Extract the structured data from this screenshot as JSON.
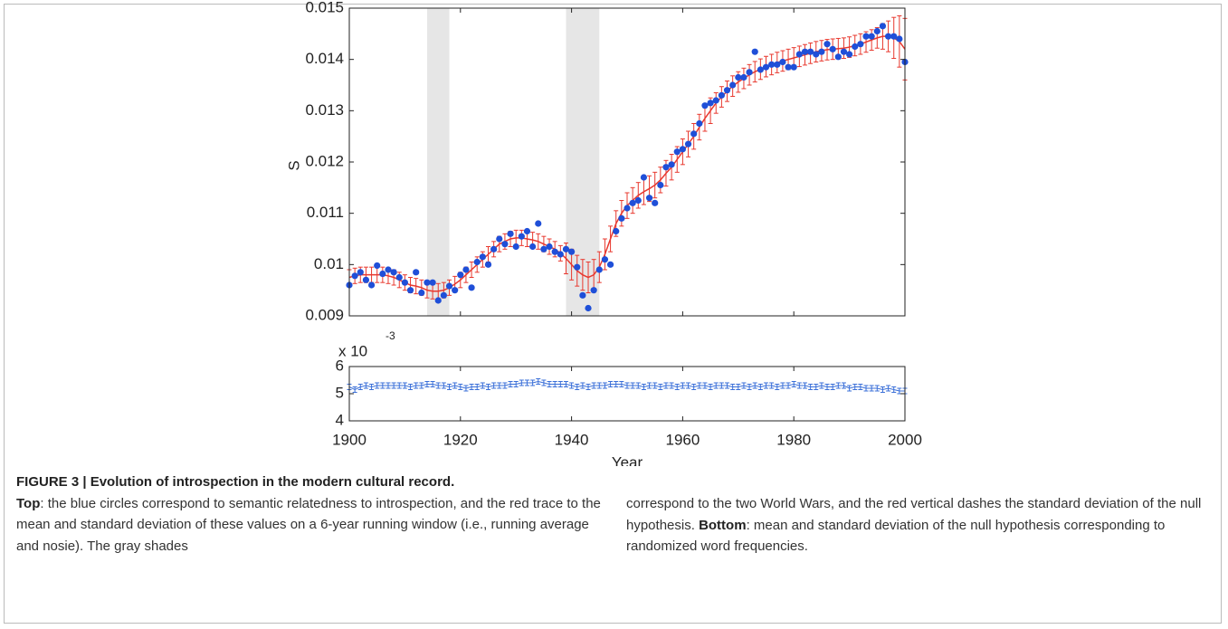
{
  "chart_data": [
    {
      "type": "scatter",
      "ylabel": "S",
      "x": [
        1900,
        1901,
        1902,
        1903,
        1904,
        1905,
        1906,
        1907,
        1908,
        1909,
        1910,
        1911,
        1912,
        1913,
        1914,
        1915,
        1916,
        1917,
        1918,
        1919,
        1920,
        1921,
        1922,
        1923,
        1924,
        1925,
        1926,
        1927,
        1928,
        1929,
        1930,
        1931,
        1932,
        1933,
        1934,
        1935,
        1936,
        1937,
        1938,
        1939,
        1940,
        1941,
        1942,
        1943,
        1944,
        1945,
        1946,
        1947,
        1948,
        1949,
        1950,
        1951,
        1952,
        1953,
        1954,
        1955,
        1956,
        1957,
        1958,
        1959,
        1960,
        1961,
        1962,
        1963,
        1964,
        1965,
        1966,
        1967,
        1968,
        1969,
        1970,
        1971,
        1972,
        1973,
        1974,
        1975,
        1976,
        1977,
        1978,
        1979,
        1980,
        1981,
        1982,
        1983,
        1984,
        1985,
        1986,
        1987,
        1988,
        1989,
        1990,
        1991,
        1992,
        1993,
        1994,
        1995,
        1996,
        1997,
        1998,
        1999,
        2000
      ],
      "series": [
        {
          "color": "#1f4fd8",
          "values": [
            0.0096,
            0.00978,
            0.00985,
            0.0097,
            0.0096,
            0.00998,
            0.00982,
            0.0099,
            0.00985,
            0.00975,
            0.00965,
            0.0095,
            0.00985,
            0.00945,
            0.00965,
            0.00965,
            0.0093,
            0.0094,
            0.00958,
            0.0095,
            0.0098,
            0.0099,
            0.00955,
            0.01005,
            0.01015,
            0.01,
            0.0103,
            0.0105,
            0.0104,
            0.0106,
            0.01035,
            0.01055,
            0.01065,
            0.01035,
            0.0108,
            0.0103,
            0.01035,
            0.01025,
            0.0102,
            0.0103,
            0.01025,
            0.00995,
            0.0094,
            0.00915,
            0.0095,
            0.0099,
            0.0101,
            0.01,
            0.01065,
            0.0109,
            0.0111,
            0.0112,
            0.01125,
            0.0117,
            0.0113,
            0.0112,
            0.01155,
            0.0119,
            0.01195,
            0.0122,
            0.01225,
            0.01235,
            0.01255,
            0.01275,
            0.0131,
            0.01315,
            0.0132,
            0.0133,
            0.0134,
            0.0135,
            0.01365,
            0.01365,
            0.01375,
            0.01415,
            0.0138,
            0.01385,
            0.0139,
            0.0139,
            0.01395,
            0.01385,
            0.01385,
            0.0141,
            0.01415,
            0.01415,
            0.0141,
            0.01415,
            0.0143,
            0.0142,
            0.01405,
            0.01415,
            0.0141,
            0.01425,
            0.0143,
            0.01445,
            0.01445,
            0.01455,
            0.01465,
            0.01445,
            0.01445,
            0.0144,
            0.01395
          ]
        },
        {
          "color": "#e8382e",
          "values": [
            0.00975,
            0.00978,
            0.0098,
            0.0098,
            0.0098,
            0.0098,
            0.0098,
            0.00978,
            0.00975,
            0.0097,
            0.00965,
            0.0096,
            0.00958,
            0.00955,
            0.0095,
            0.00948,
            0.00948,
            0.0095,
            0.00955,
            0.00962,
            0.0097,
            0.0098,
            0.0099,
            0.01,
            0.0101,
            0.0102,
            0.0103,
            0.0104,
            0.01045,
            0.0105,
            0.01052,
            0.01052,
            0.0105,
            0.01048,
            0.01045,
            0.0104,
            0.01035,
            0.0103,
            0.01022,
            0.01012,
            0.01,
            0.00988,
            0.0098,
            0.00975,
            0.0098,
            0.00995,
            0.0102,
            0.0105,
            0.0108,
            0.011,
            0.01115,
            0.01125,
            0.01135,
            0.01142,
            0.01148,
            0.01155,
            0.01165,
            0.01178,
            0.0119,
            0.01205,
            0.0122,
            0.01235,
            0.0125,
            0.01268,
            0.01285,
            0.013,
            0.01315,
            0.01327,
            0.01338,
            0.01348,
            0.01356,
            0.01363,
            0.0137,
            0.01376,
            0.01381,
            0.01386,
            0.0139,
            0.01394,
            0.01397,
            0.014,
            0.01403,
            0.01406,
            0.01409,
            0.01412,
            0.01415,
            0.01417,
            0.01419,
            0.0142,
            0.01421,
            0.01422,
            0.01424,
            0.01427,
            0.0143,
            0.01434,
            0.01438,
            0.01442,
            0.01445,
            0.01445,
            0.01442,
            0.01435,
            0.0142
          ],
          "errors": [
            0.00015,
            0.00015,
            0.00015,
            0.00015,
            0.00015,
            0.00015,
            0.00015,
            0.00015,
            0.00015,
            0.00015,
            0.00015,
            0.00015,
            0.00015,
            0.00015,
            0.00015,
            0.00015,
            0.00015,
            0.00015,
            0.00015,
            0.00015,
            0.00015,
            0.00015,
            0.00015,
            0.00015,
            0.00015,
            0.00015,
            0.00015,
            0.00015,
            0.00015,
            0.00015,
            0.00015,
            0.00015,
            0.00015,
            0.00015,
            0.00015,
            0.00015,
            0.00015,
            0.00015,
            0.00015,
            0.0003,
            0.0003,
            0.0003,
            0.0003,
            0.0003,
            0.0003,
            0.0003,
            0.0003,
            0.00025,
            0.00025,
            0.00025,
            0.00025,
            0.00025,
            0.00025,
            0.00025,
            0.00025,
            0.00025,
            0.00025,
            0.00025,
            0.00025,
            0.00025,
            0.00025,
            0.00025,
            0.00025,
            0.00025,
            0.00025,
            0.00025,
            0.0002,
            0.0002,
            0.0002,
            0.0002,
            0.0002,
            0.0002,
            0.0002,
            0.0002,
            0.0002,
            0.0002,
            0.0002,
            0.0002,
            0.0002,
            0.0002,
            0.0002,
            0.0002,
            0.0002,
            0.0002,
            0.0002,
            0.0002,
            0.0002,
            0.0002,
            0.0002,
            0.0002,
            0.0002,
            0.0002,
            0.0002,
            0.0002,
            0.0002,
            0.0002,
            0.00025,
            0.0003,
            0.0004,
            0.0005,
            0.0006
          ]
        }
      ],
      "shades": [
        [
          1914,
          1918
        ],
        [
          1939,
          1945
        ]
      ],
      "shade_color": "#e6e6e6",
      "xlim": [
        1900,
        2000
      ],
      "xticks": [
        1900,
        1920,
        1940,
        1960,
        1980,
        2000
      ],
      "ylim": [
        0.009,
        0.015
      ],
      "yticks": [
        0.009,
        0.01,
        0.011,
        0.012,
        0.013,
        0.014,
        0.015
      ]
    },
    {
      "type": "errorbar",
      "xlabel": "Year",
      "axis_multiplier": "x 10",
      "axis_multiplier_exp": "-3",
      "x": [
        1900,
        1901,
        1902,
        1903,
        1904,
        1905,
        1906,
        1907,
        1908,
        1909,
        1910,
        1911,
        1912,
        1913,
        1914,
        1915,
        1916,
        1917,
        1918,
        1919,
        1920,
        1921,
        1922,
        1923,
        1924,
        1925,
        1926,
        1927,
        1928,
        1929,
        1930,
        1931,
        1932,
        1933,
        1934,
        1935,
        1936,
        1937,
        1938,
        1939,
        1940,
        1941,
        1942,
        1943,
        1944,
        1945,
        1946,
        1947,
        1948,
        1949,
        1950,
        1951,
        1952,
        1953,
        1954,
        1955,
        1956,
        1957,
        1958,
        1959,
        1960,
        1961,
        1962,
        1963,
        1964,
        1965,
        1966,
        1967,
        1968,
        1969,
        1970,
        1971,
        1972,
        1973,
        1974,
        1975,
        1976,
        1977,
        1978,
        1979,
        1980,
        1981,
        1982,
        1983,
        1984,
        1985,
        1986,
        1987,
        1988,
        1989,
        1990,
        1991,
        1992,
        1993,
        1994,
        1995,
        1996,
        1997,
        1998,
        1999,
        2000
      ],
      "color": "#3a6fd8",
      "values": [
        5.25,
        5.15,
        5.25,
        5.3,
        5.25,
        5.3,
        5.3,
        5.3,
        5.3,
        5.3,
        5.3,
        5.25,
        5.3,
        5.3,
        5.35,
        5.35,
        5.3,
        5.3,
        5.25,
        5.3,
        5.25,
        5.2,
        5.25,
        5.25,
        5.3,
        5.25,
        5.3,
        5.3,
        5.3,
        5.35,
        5.35,
        5.4,
        5.4,
        5.4,
        5.45,
        5.4,
        5.35,
        5.35,
        5.35,
        5.35,
        5.3,
        5.25,
        5.3,
        5.25,
        5.3,
        5.3,
        5.3,
        5.35,
        5.35,
        5.35,
        5.3,
        5.3,
        5.3,
        5.25,
        5.3,
        5.3,
        5.25,
        5.3,
        5.3,
        5.25,
        5.3,
        5.3,
        5.25,
        5.3,
        5.3,
        5.25,
        5.3,
        5.3,
        5.3,
        5.25,
        5.25,
        5.3,
        5.25,
        5.3,
        5.25,
        5.3,
        5.3,
        5.25,
        5.3,
        5.3,
        5.35,
        5.3,
        5.3,
        5.25,
        5.25,
        5.3,
        5.25,
        5.25,
        5.3,
        5.3,
        5.2,
        5.25,
        5.25,
        5.2,
        5.2,
        5.2,
        5.15,
        5.2,
        5.15,
        5.1,
        5.1
      ],
      "errors": [
        0.1,
        0.1,
        0.1,
        0.1,
        0.1,
        0.1,
        0.1,
        0.1,
        0.1,
        0.1,
        0.1,
        0.1,
        0.1,
        0.1,
        0.1,
        0.1,
        0.1,
        0.1,
        0.1,
        0.1,
        0.1,
        0.1,
        0.1,
        0.1,
        0.1,
        0.1,
        0.1,
        0.1,
        0.1,
        0.1,
        0.1,
        0.1,
        0.1,
        0.1,
        0.1,
        0.1,
        0.1,
        0.1,
        0.1,
        0.1,
        0.1,
        0.1,
        0.1,
        0.1,
        0.1,
        0.1,
        0.1,
        0.1,
        0.1,
        0.1,
        0.1,
        0.1,
        0.1,
        0.1,
        0.1,
        0.1,
        0.1,
        0.1,
        0.1,
        0.1,
        0.1,
        0.1,
        0.1,
        0.1,
        0.1,
        0.1,
        0.1,
        0.1,
        0.1,
        0.1,
        0.1,
        0.1,
        0.1,
        0.1,
        0.1,
        0.1,
        0.1,
        0.1,
        0.1,
        0.1,
        0.1,
        0.1,
        0.1,
        0.1,
        0.1,
        0.1,
        0.1,
        0.1,
        0.1,
        0.1,
        0.1,
        0.1,
        0.1,
        0.1,
        0.1,
        0.1,
        0.1,
        0.1,
        0.1,
        0.1,
        0.1
      ],
      "xlim": [
        1900,
        2000
      ],
      "xticks": [
        1900,
        1920,
        1940,
        1960,
        1980,
        2000
      ],
      "ylim": [
        4,
        6
      ],
      "yticks": [
        4,
        5,
        6
      ]
    }
  ],
  "caption": {
    "title": "FIGURE 3 | Evolution of introspection in the modern cultural record.",
    "top_label": "Top",
    "top_text_1": ": the blue circles correspond to semantic relatedness to introspection, and the red trace to the mean and standard deviation of these values on a 6-year running window (i.e., running average and nosie). The gray shades",
    "top_text_2": "correspond to the two World Wars, and the red vertical dashes the standard deviation of the null hypothesis.",
    "bottom_label": "Bottom",
    "bottom_text": ": mean and standard deviation of the null hypothesis corresponding to randomized word frequencies."
  }
}
